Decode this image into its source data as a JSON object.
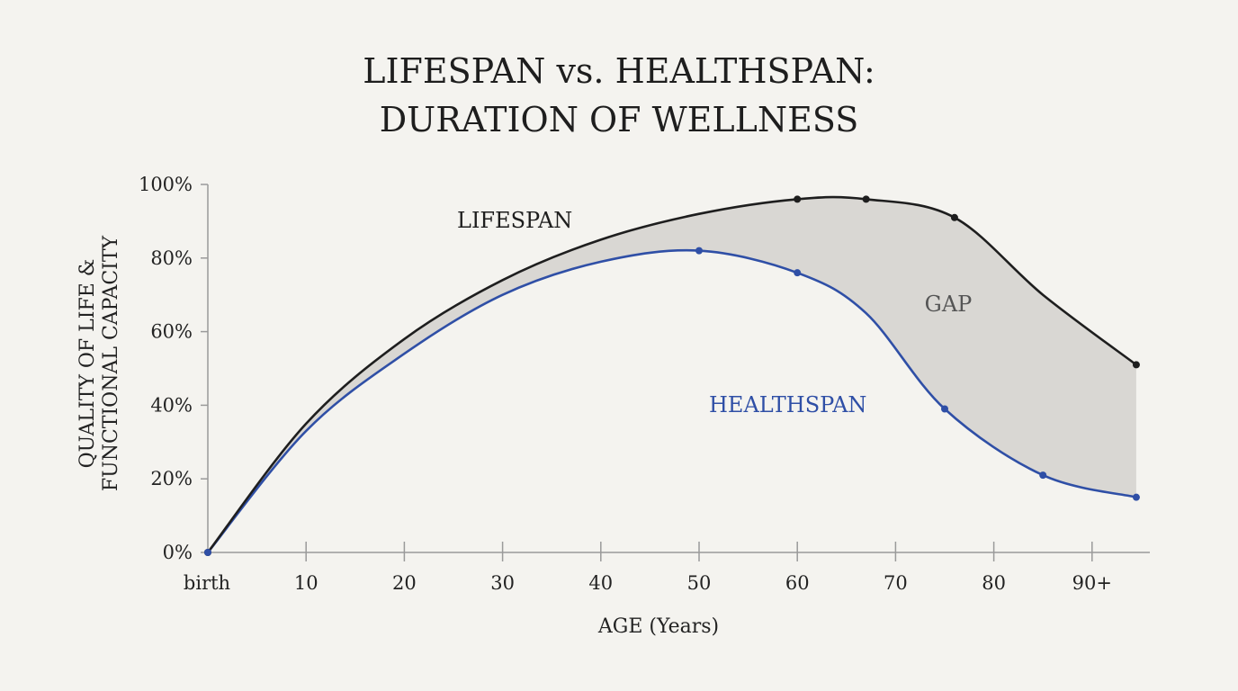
{
  "chart_data": {
    "type": "line",
    "title_lines": [
      "LIFESPAN vs. HEALTHSPAN:",
      "DURATION OF WELLNESS"
    ],
    "xlabel": "AGE (Years)",
    "ylabel_lines": [
      "QUALITY OF LIFE &",
      "FUNCTIONAL CAPACITY"
    ],
    "x_ticks": [
      {
        "value": 0,
        "label": "birth"
      },
      {
        "value": 10,
        "label": "10"
      },
      {
        "value": 20,
        "label": "20"
      },
      {
        "value": 30,
        "label": "30"
      },
      {
        "value": 40,
        "label": "40"
      },
      {
        "value": 50,
        "label": "50"
      },
      {
        "value": 60,
        "label": "60"
      },
      {
        "value": 70,
        "label": "70"
      },
      {
        "value": 80,
        "label": "80"
      },
      {
        "value": 90,
        "label": "90+"
      }
    ],
    "y_ticks": [
      {
        "value": 0,
        "label": "0%"
      },
      {
        "value": 20,
        "label": "20%"
      },
      {
        "value": 40,
        "label": "40%"
      },
      {
        "value": 60,
        "label": "60%"
      },
      {
        "value": 80,
        "label": "80%"
      },
      {
        "value": 100,
        "label": "100%"
      }
    ],
    "xlim": [
      0,
      95
    ],
    "ylim": [
      0,
      100
    ],
    "grid": false,
    "gap_label": "GAP",
    "gap_fill": "#d9d7d3",
    "series": [
      {
        "name": "LIFESPAN",
        "color": "#1e1e1e",
        "points": [
          [
            0,
            0
          ],
          [
            10,
            35
          ],
          [
            20,
            58
          ],
          [
            30,
            74
          ],
          [
            40,
            85
          ],
          [
            50,
            92
          ],
          [
            60,
            96
          ],
          [
            67,
            96
          ],
          [
            76,
            91
          ],
          [
            85,
            70
          ],
          [
            94.5,
            51
          ]
        ],
        "markers": [
          [
            0,
            0
          ],
          [
            60,
            96
          ],
          [
            67,
            96
          ],
          [
            76,
            91
          ],
          [
            94.5,
            51
          ]
        ]
      },
      {
        "name": "HEALTHSPAN",
        "color": "#2f4fa6",
        "points": [
          [
            0,
            0
          ],
          [
            10,
            33
          ],
          [
            20,
            54
          ],
          [
            30,
            70
          ],
          [
            40,
            79
          ],
          [
            50,
            82
          ],
          [
            60,
            76
          ],
          [
            67,
            65
          ],
          [
            75,
            39
          ],
          [
            85,
            21
          ],
          [
            94.5,
            15
          ]
        ],
        "markers": [
          [
            0,
            0
          ],
          [
            50,
            82
          ],
          [
            60,
            76
          ],
          [
            75,
            39
          ],
          [
            85,
            21
          ],
          [
            94.5,
            15
          ]
        ]
      }
    ]
  }
}
